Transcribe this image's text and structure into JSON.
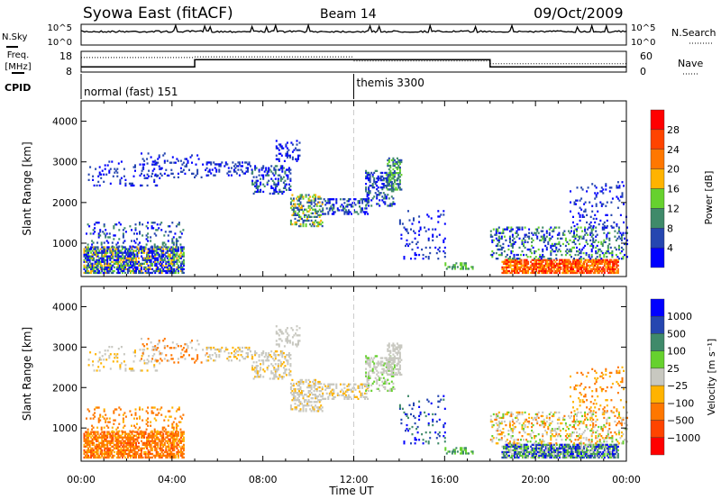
{
  "header": {
    "station": "Syowa East (fitACF)",
    "beam": "Beam 14",
    "date": "09/Oct/2009"
  },
  "top_panels": {
    "nsky_label": "N.Sky",
    "nsearch_label": "N.Search",
    "nsky_ticks": [
      "10^5",
      "10^0"
    ],
    "freq_label": "Freq.",
    "freq_unit": "[MHz]",
    "freq_ticks": [
      "18",
      "8"
    ],
    "nave_label": "Nave",
    "nave_ticks": [
      "60",
      "0"
    ],
    "cpid_label": "CPID",
    "cpid_segments": [
      {
        "label": "normal (fast) 151",
        "start_h": 0
      },
      {
        "label": "themis 3300",
        "start_h": 12
      }
    ],
    "freq_steps": [
      {
        "t0": 0,
        "t1": 5,
        "mhz": 10.5
      },
      {
        "t0": 5,
        "t1": 18,
        "mhz": 14
      },
      {
        "t0": 18,
        "t1": 24,
        "mhz": 10.5
      }
    ],
    "nave_steps": [
      {
        "t0": 0,
        "t1": 5,
        "v": 42
      },
      {
        "t0": 5,
        "t1": 12,
        "v": 44
      },
      {
        "t0": 12,
        "t1": 18,
        "v": 32
      },
      {
        "t0": 18,
        "t1": 24,
        "v": 24
      }
    ]
  },
  "chart_data": [
    {
      "type": "heatmap",
      "name": "power",
      "ylabel": "Slant Range [km]",
      "xlabel": "Time UT",
      "xlim": [
        0,
        24
      ],
      "ylim": [
        180,
        4500
      ],
      "yticks": [
        "1000",
        "2000",
        "3000",
        "4000"
      ],
      "xticks": [
        "00:00",
        "04:00",
        "08:00",
        "12:00",
        "16:00",
        "20:00",
        "00:00"
      ],
      "colorbar": {
        "label": "Power [dB]",
        "ticks": [
          "28",
          "24",
          "20",
          "16",
          "12",
          "8",
          "4"
        ],
        "colors": [
          "#ff0000",
          "#ff4400",
          "#ff7700",
          "#ffb300",
          "#66d12e",
          "#3f8a6a",
          "#2546b0",
          "#0000ff"
        ]
      }
    },
    {
      "type": "heatmap",
      "name": "velocity",
      "ylabel": "Slant Range [km]",
      "xlabel": "Time UT",
      "xlim": [
        0,
        24
      ],
      "ylim": [
        180,
        4500
      ],
      "yticks": [
        "1000",
        "2000",
        "3000",
        "4000"
      ],
      "xticks": [
        "00:00",
        "04:00",
        "08:00",
        "12:00",
        "16:00",
        "20:00",
        "00:00"
      ],
      "colorbar": {
        "label": "Velocity [m s⁻¹]",
        "ticks": [
          "1000",
          "500",
          "100",
          "25",
          "−25",
          "−100",
          "−500",
          "−1000"
        ],
        "colors": [
          "#0000ff",
          "#2546b0",
          "#3f8a6a",
          "#66d12e",
          "#c8c8c0",
          "#ffb300",
          "#ff7700",
          "#ff4400",
          "#ff0000"
        ]
      }
    }
  ],
  "echo_regions": [
    {
      "t": [
        0.1,
        4.5
      ],
      "r": [
        250,
        900
      ],
      "d": 0.7,
      "p": [
        7,
        7,
        6,
        5,
        4,
        3
      ],
      "v": [
        6,
        6,
        6,
        5,
        7
      ]
    },
    {
      "t": [
        0.2,
        4.5
      ],
      "r": [
        900,
        1500
      ],
      "d": 0.15,
      "p": [
        7,
        6,
        5
      ],
      "v": [
        6,
        5,
        6
      ]
    },
    {
      "t": [
        0.3,
        3.5
      ],
      "r": [
        2400,
        3000
      ],
      "d": 0.12,
      "p": [
        7,
        6
      ],
      "v": [
        4,
        4,
        5
      ]
    },
    {
      "t": [
        2.5,
        5.5
      ],
      "r": [
        2600,
        3200
      ],
      "d": 0.12,
      "p": [
        7,
        6
      ],
      "v": [
        4,
        6
      ]
    },
    {
      "t": [
        5.5,
        7.5
      ],
      "r": [
        2650,
        3000
      ],
      "d": 0.3,
      "p": [
        7,
        6
      ],
      "v": [
        4,
        4,
        5
      ]
    },
    {
      "t": [
        7.5,
        9.2
      ],
      "r": [
        2200,
        2900
      ],
      "d": 0.35,
      "p": [
        7,
        6,
        5
      ],
      "v": [
        4,
        4,
        4,
        5
      ]
    },
    {
      "t": [
        8.5,
        9.6
      ],
      "r": [
        3000,
        3500
      ],
      "d": 0.25,
      "p": [
        7,
        6
      ],
      "v": [
        4,
        4
      ]
    },
    {
      "t": [
        9.2,
        10.6
      ],
      "r": [
        1400,
        2200
      ],
      "d": 0.4,
      "p": [
        6,
        5,
        4,
        3
      ],
      "v": [
        4,
        4,
        4,
        5
      ]
    },
    {
      "t": [
        10.6,
        12.6
      ],
      "r": [
        1700,
        2100
      ],
      "d": 0.4,
      "p": [
        7,
        6,
        5
      ],
      "v": [
        4,
        4,
        5
      ]
    },
    {
      "t": [
        12.5,
        13.8
      ],
      "r": [
        1900,
        2800
      ],
      "d": 0.35,
      "p": [
        7,
        6,
        5
      ],
      "v": [
        4,
        4,
        3
      ]
    },
    {
      "t": [
        13.4,
        14.1
      ],
      "r": [
        2300,
        3100
      ],
      "d": 0.55,
      "p": [
        6,
        5,
        4
      ],
      "v": [
        4,
        4
      ]
    },
    {
      "t": [
        14.0,
        16.0
      ],
      "r": [
        600,
        1800
      ],
      "d": 0.08,
      "p": [
        7,
        6
      ],
      "v": [
        0,
        1,
        2
      ]
    },
    {
      "t": [
        16.0,
        17.2
      ],
      "r": [
        350,
        500
      ],
      "d": 0.4,
      "p": [
        5,
        4
      ],
      "v": [
        2,
        3
      ]
    },
    {
      "t": [
        18.5,
        23.6
      ],
      "r": [
        250,
        600
      ],
      "d": 0.8,
      "p": [
        0,
        1,
        2,
        1,
        3
      ],
      "v": [
        0,
        1,
        2,
        3,
        4
      ]
    },
    {
      "t": [
        18.0,
        24.0
      ],
      "r": [
        600,
        1400
      ],
      "d": 0.25,
      "p": [
        7,
        6,
        5,
        4
      ],
      "v": [
        4,
        5,
        6,
        4,
        3
      ]
    },
    {
      "t": [
        21.5,
        24.0
      ],
      "r": [
        1400,
        2500
      ],
      "d": 0.1,
      "p": [
        7,
        6
      ],
      "v": [
        5,
        6
      ]
    }
  ]
}
